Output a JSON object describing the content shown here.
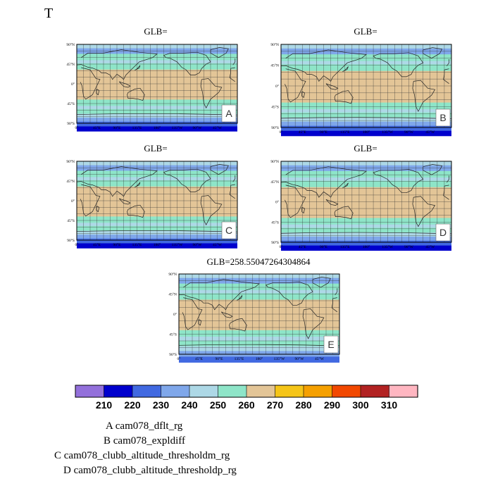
{
  "page": {
    "title": "T"
  },
  "chart_data": {
    "type": "heatmap",
    "variable": "T",
    "panels": [
      {
        "letter": "A",
        "title": "GLB="
      },
      {
        "letter": "B",
        "title": "GLB="
      },
      {
        "letter": "C",
        "title": "GLB="
      },
      {
        "letter": "D",
        "title": "GLB="
      },
      {
        "letter": "E",
        "title": "GLB=258.55047264304864"
      }
    ],
    "lat_ticks": [
      "90°N",
      "45°N",
      "0°",
      "45°S",
      "90°S"
    ],
    "lon_ticks": [
      "0°",
      "45°E",
      "90°E",
      "135°E",
      "180°",
      "135°W",
      "90°W",
      "45°W"
    ],
    "colorbar": {
      "levels": [
        "210",
        "220",
        "230",
        "240",
        "250",
        "260",
        "270",
        "280",
        "290",
        "300",
        "310"
      ],
      "colors": [
        "#9370db",
        "#0000cd",
        "#4169e1",
        "#7fa7ea",
        "#add8e6",
        "#8ee5c8",
        "#e3c597",
        "#f5c518",
        "#f5a000",
        "#f24800",
        "#b22222",
        "#ffb6c1"
      ]
    },
    "legend": [
      "A  cam078_dflt_rg",
      "B  cam078_expldiff",
      "C  cam078_clubb_altitude_thresholdm_rg",
      "D  cam078_clubb_altitude_thresholdp_rg"
    ]
  }
}
